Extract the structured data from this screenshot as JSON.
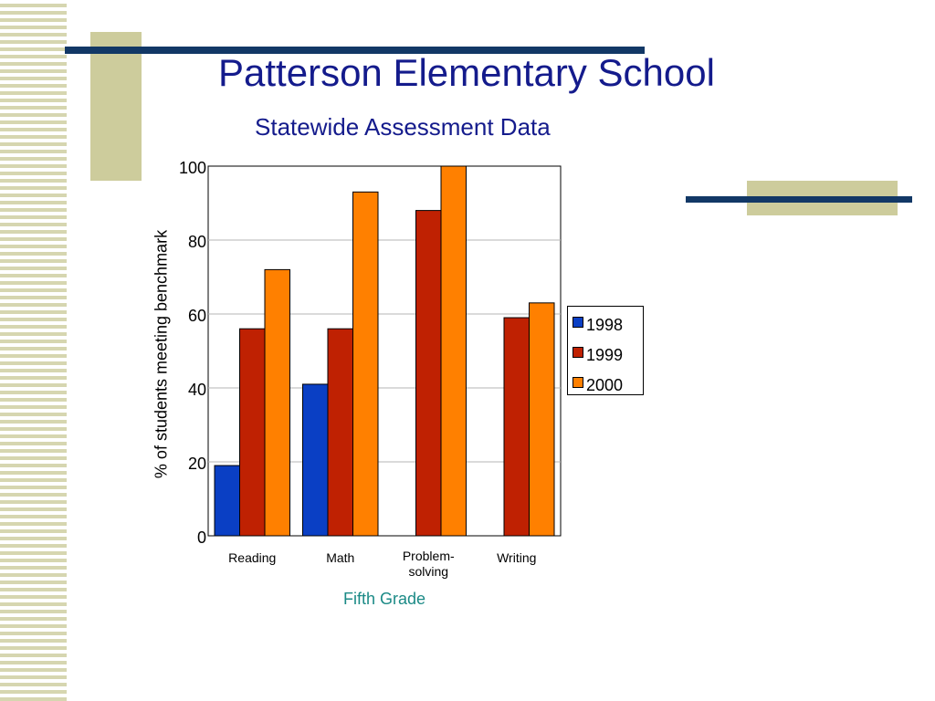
{
  "page": {
    "title": "Patterson Elementary School",
    "subtitle": "Statewide Assessment Data"
  },
  "colors": {
    "title": "#141b8c",
    "x_axis_title": "#1b8a86",
    "stripe": "#d6d6b0",
    "tan": "#cdcc9c",
    "navy": "#123866"
  },
  "chart_data": {
    "type": "bar",
    "categories": [
      "Reading",
      "Math",
      "Problem-solving",
      "Writing"
    ],
    "category_label_lines": [
      [
        "Reading"
      ],
      [
        "Math"
      ],
      [
        "Problem-",
        "solving"
      ],
      [
        "Writing"
      ]
    ],
    "series": [
      {
        "name": "1998",
        "color": "#0a3fc4",
        "values": [
          19,
          41,
          null,
          null
        ]
      },
      {
        "name": "1999",
        "color": "#bf2102",
        "values": [
          56,
          56,
          88,
          59
        ]
      },
      {
        "name": "2000",
        "color": "#ff8000",
        "values": [
          72,
          93,
          100,
          63
        ]
      }
    ],
    "ylim": [
      0,
      100
    ],
    "yticks": [
      0,
      20,
      40,
      60,
      80,
      100
    ],
    "ylabel": "% of students meeting benchmark",
    "xlabel": "Fifth Grade",
    "grid": true,
    "legend_position": "right"
  }
}
